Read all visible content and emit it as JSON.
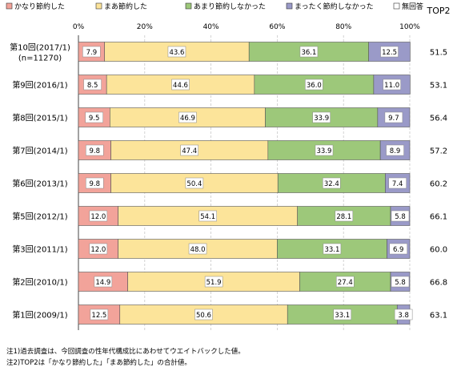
{
  "chart_data": {
    "type": "bar",
    "stacked": "horizontal-100-percent",
    "x_tick_labels": [
      "0%",
      "20%",
      "40%",
      "60%",
      "80%",
      "100%"
    ],
    "xlim": [
      0,
      100
    ],
    "legend_position": "top",
    "categories": [
      {
        "label": "第10回(2017/1)",
        "sublabel": "(n=11270)",
        "top2": "51.5"
      },
      {
        "label": "第9回(2016/1)",
        "sublabel": "",
        "top2": "53.1"
      },
      {
        "label": "第8回(2015/1)",
        "sublabel": "",
        "top2": "56.4"
      },
      {
        "label": "第7回(2014/1)",
        "sublabel": "",
        "top2": "57.2"
      },
      {
        "label": "第6回(2013/1)",
        "sublabel": "",
        "top2": "60.2"
      },
      {
        "label": "第5回(2012/1)",
        "sublabel": "",
        "top2": "66.1"
      },
      {
        "label": "第3回(2011/1)",
        "sublabel": "",
        "top2": "60.0"
      },
      {
        "label": "第2回(2010/1)",
        "sublabel": "",
        "top2": "66.8"
      },
      {
        "label": "第1回(2009/1)",
        "sublabel": "",
        "top2": "63.1"
      }
    ],
    "series": [
      {
        "name": "かなり節約した",
        "color": "#f2a39a",
        "values": [
          7.9,
          8.5,
          9.5,
          9.8,
          9.8,
          12.0,
          12.0,
          14.9,
          12.5
        ],
        "labels": [
          "7.9",
          "8.5",
          "9.5",
          "9.8",
          "9.8",
          "12.0",
          "12.0",
          "14.9",
          "12.5"
        ]
      },
      {
        "name": "まあ節約した",
        "color": "#fce49a",
        "values": [
          43.6,
          44.6,
          46.9,
          47.4,
          50.4,
          54.1,
          48.0,
          51.9,
          50.6
        ],
        "labels": [
          "43.6",
          "44.6",
          "46.9",
          "47.4",
          "50.4",
          "54.1",
          "48.0",
          "51.9",
          "50.6"
        ]
      },
      {
        "name": "あまり節約しなかった",
        "color": "#9dc87a",
        "values": [
          36.1,
          36.0,
          33.9,
          33.9,
          32.4,
          28.1,
          33.1,
          27.4,
          33.1
        ],
        "labels": [
          "36.1",
          "36.0",
          "33.9",
          "33.9",
          "32.4",
          "28.1",
          "33.1",
          "27.4",
          "33.1"
        ]
      },
      {
        "name": "まったく節約しなかった",
        "color": "#9a9ac8",
        "values": [
          12.5,
          11.0,
          9.7,
          8.9,
          7.4,
          5.8,
          6.9,
          5.8,
          3.8
        ],
        "labels": [
          "12.5",
          "11.0",
          "9.7",
          "8.9",
          "7.4",
          "5.8",
          "6.9",
          "5.8",
          "3.8"
        ]
      },
      {
        "name": "無回答",
        "color": "#ffffff",
        "values": [
          0,
          0,
          0,
          0,
          0,
          0,
          0,
          0,
          0
        ],
        "labels": [
          "",
          "",
          "",
          "",
          "",
          "",
          "",
          "",
          ""
        ]
      }
    ],
    "top2_header": "TOP2"
  },
  "notes": [
    "注1)過去調査は、今回調査の性年代構成比にあわせてウエイトバックした値。",
    "注2)TOP2は「かなり節約した」「まあ節約した」の合計値。"
  ]
}
